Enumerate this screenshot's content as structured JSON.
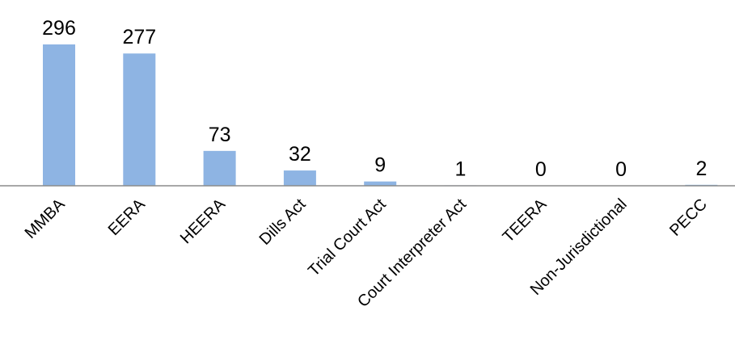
{
  "chart_data": {
    "type": "bar",
    "categories": [
      "MMBA",
      "EERA",
      "HEERA",
      "Dills Act",
      "Trial Court Act",
      "Court Interpreter Act",
      "TEERA",
      "Non-Jurisdictional",
      "PECC"
    ],
    "values": [
      296,
      277,
      73,
      32,
      9,
      1,
      0,
      0,
      2
    ],
    "color": "#8eb4e3"
  }
}
